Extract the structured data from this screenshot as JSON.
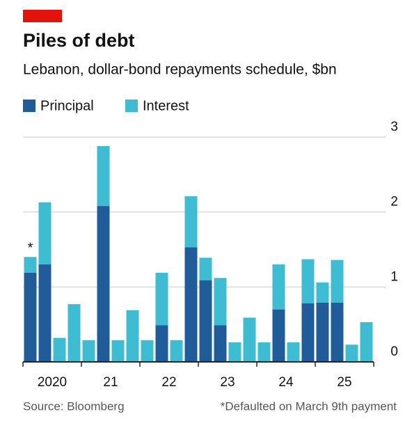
{
  "chart_data": {
    "type": "stacked_bar",
    "title": "Piles of debt",
    "subtitle": "Lebanon, dollar-bond repayments schedule, $bn",
    "categories": [
      "2020",
      null,
      null,
      null,
      "21",
      null,
      null,
      null,
      "22",
      null,
      null,
      null,
      "23",
      null,
      null,
      null,
      "24",
      null,
      null,
      null,
      "25",
      null,
      null,
      null
    ],
    "series": [
      {
        "name": "Principal",
        "color": "#1f5c99",
        "values": [
          1.19,
          1.3,
          0,
          0,
          0,
          2.08,
          0,
          0,
          0,
          0.49,
          0,
          1.53,
          1.09,
          0.49,
          0,
          0,
          0,
          0.7,
          0,
          0.78,
          0.79,
          0.79,
          0,
          0
        ]
      },
      {
        "name": "Interest",
        "color": "#3ebcd2",
        "values": [
          0.21,
          0.83,
          0.32,
          0.77,
          0.29,
          0.8,
          0.29,
          0.69,
          0.29,
          0.7,
          0.29,
          0.68,
          0.3,
          0.63,
          0.26,
          0.59,
          0.26,
          0.6,
          0.26,
          0.59,
          0.27,
          0.57,
          0.23,
          0.53
        ]
      }
    ],
    "ylim": [
      0,
      3
    ],
    "yticks": [
      0,
      1,
      2,
      3
    ],
    "grid": true,
    "annotation": "*",
    "source": "Source: Bloomberg",
    "footnote": "*Defaulted on March 9th payment"
  }
}
